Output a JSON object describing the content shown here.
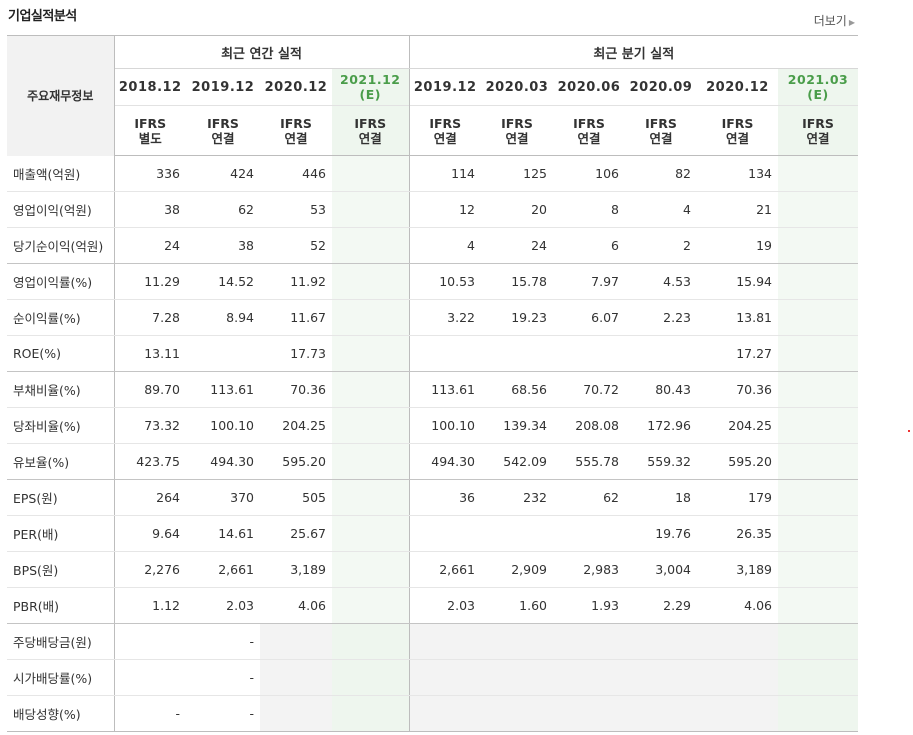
{
  "section_title": "기업실적분석",
  "more_label": "더보기",
  "row_header": "주요재무정보",
  "groups": {
    "annual": "최근 연간 실적",
    "quarterly": "최근 분기 실적"
  },
  "periods": [
    "2018.12",
    "2019.12",
    "2020.12",
    "2021.12",
    "2019.12",
    "2020.03",
    "2020.06",
    "2020.09",
    "2020.12",
    "2021.03"
  ],
  "estimate_mark": "(E)",
  "types": [
    {
      "std": "IFRS",
      "basis": "별도"
    },
    {
      "std": "IFRS",
      "basis": "연결"
    },
    {
      "std": "IFRS",
      "basis": "연결"
    },
    {
      "std": "IFRS",
      "basis": "연결"
    },
    {
      "std": "IFRS",
      "basis": "연결"
    },
    {
      "std": "IFRS",
      "basis": "연결"
    },
    {
      "std": "IFRS",
      "basis": "연결"
    },
    {
      "std": "IFRS",
      "basis": "연결"
    },
    {
      "std": "IFRS",
      "basis": "연결"
    },
    {
      "std": "IFRS",
      "basis": "연결"
    }
  ],
  "rows": [
    {
      "label": "매출액(억원)",
      "values": [
        "336",
        "424",
        "446",
        "",
        "114",
        "125",
        "106",
        "82",
        "134",
        ""
      ]
    },
    {
      "label": "영업이익(억원)",
      "values": [
        "38",
        "62",
        "53",
        "",
        "12",
        "20",
        "8",
        "4",
        "21",
        ""
      ]
    },
    {
      "label": "당기순이익(억원)",
      "values": [
        "24",
        "38",
        "52",
        "",
        "4",
        "24",
        "6",
        "2",
        "19",
        ""
      ]
    },
    {
      "label": "영업이익률(%)",
      "values": [
        "11.29",
        "14.52",
        "11.92",
        "",
        "10.53",
        "15.78",
        "7.97",
        "4.53",
        "15.94",
        ""
      ]
    },
    {
      "label": "순이익률(%)",
      "values": [
        "7.28",
        "8.94",
        "11.67",
        "",
        "3.22",
        "19.23",
        "6.07",
        "2.23",
        "13.81",
        ""
      ]
    },
    {
      "label": "ROE(%)",
      "values": [
        "13.11",
        "",
        "17.73",
        "",
        "",
        "",
        "",
        "",
        "17.27",
        ""
      ]
    },
    {
      "label": "부채비율(%)",
      "values": [
        "89.70",
        "113.61",
        "70.36",
        "",
        "113.61",
        "68.56",
        "70.72",
        "80.43",
        "70.36",
        ""
      ]
    },
    {
      "label": "당좌비율(%)",
      "values": [
        "73.32",
        "100.10",
        "204.25",
        "",
        "100.10",
        "139.34",
        "208.08",
        "172.96",
        "204.25",
        ""
      ]
    },
    {
      "label": "유보율(%)",
      "values": [
        "423.75",
        "494.30",
        "595.20",
        "",
        "494.30",
        "542.09",
        "555.78",
        "559.32",
        "595.20",
        ""
      ]
    },
    {
      "label": "EPS(원)",
      "values": [
        "264",
        "370",
        "505",
        "",
        "36",
        "232",
        "62",
        "18",
        "179",
        ""
      ]
    },
    {
      "label": "PER(배)",
      "values": [
        "9.64",
        "14.61",
        "25.67",
        "",
        "",
        "",
        "",
        "19.76",
        "26.35",
        ""
      ]
    },
    {
      "label": "BPS(원)",
      "values": [
        "2,276",
        "2,661",
        "3,189",
        "",
        "2,661",
        "2,909",
        "2,983",
        "3,004",
        "3,189",
        ""
      ]
    },
    {
      "label": "PBR(배)",
      "values": [
        "1.12",
        "2.03",
        "4.06",
        "",
        "2.03",
        "1.60",
        "1.93",
        "2.29",
        "4.06",
        ""
      ]
    },
    {
      "label": "주당배당금(원)",
      "values": [
        "",
        "-",
        "",
        "",
        "",
        "",
        "",
        "",
        "",
        ""
      ]
    },
    {
      "label": "시가배당률(%)",
      "values": [
        "",
        "-",
        "",
        "",
        "",
        "",
        "",
        "",
        "",
        ""
      ]
    },
    {
      "label": "배당성향(%)",
      "values": [
        "-",
        "-",
        "",
        "",
        "",
        "",
        "",
        "",
        "",
        ""
      ]
    }
  ]
}
